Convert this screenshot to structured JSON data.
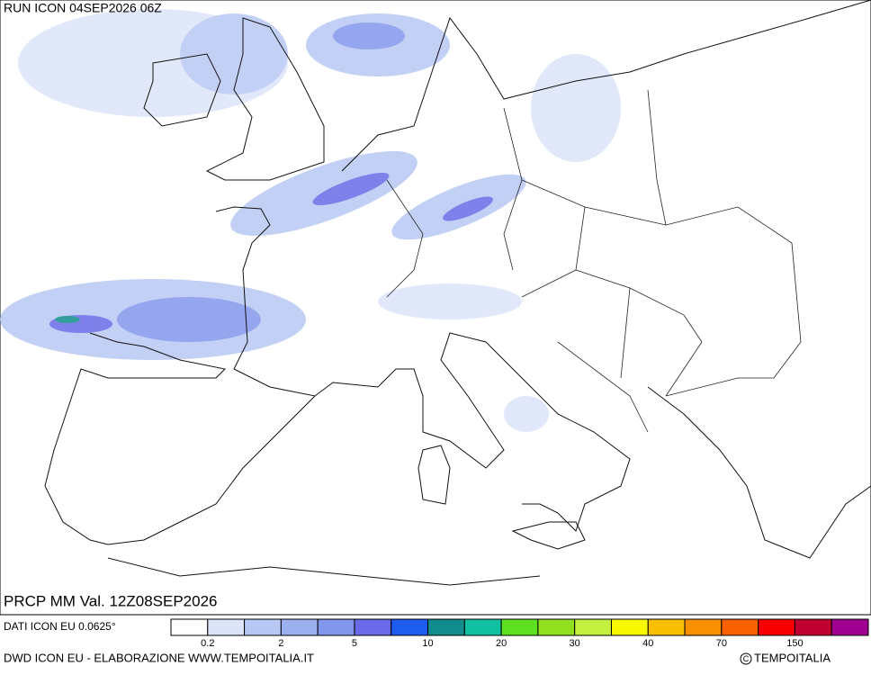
{
  "header": {
    "run": "RUN ICON 04SEP2026 06Z"
  },
  "map": {
    "caption": "PRCP MM Val. 12Z08SEP2026"
  },
  "legend": {
    "source": "DATI ICON EU 0.0625°",
    "colors": [
      "#ffffff",
      "#dce4f8",
      "#b8c8f4",
      "#9cb0f0",
      "#8296ec",
      "#6a6ae8",
      "#1e5cf0",
      "#108c8c",
      "#10c0a0",
      "#5ce020",
      "#90e020",
      "#c4f040",
      "#f8f800",
      "#f8c000",
      "#f89000",
      "#f86000",
      "#f80000",
      "#c00030",
      "#a00090"
    ],
    "labels": [
      0.2,
      2,
      5,
      10,
      20,
      30,
      40,
      70,
      150
    ]
  },
  "footer": {
    "credit": "DWD ICON EU - ELABORAZIONE WWW.TEMPOITALIA.IT",
    "copyright": "TEMPOITALIA"
  }
}
